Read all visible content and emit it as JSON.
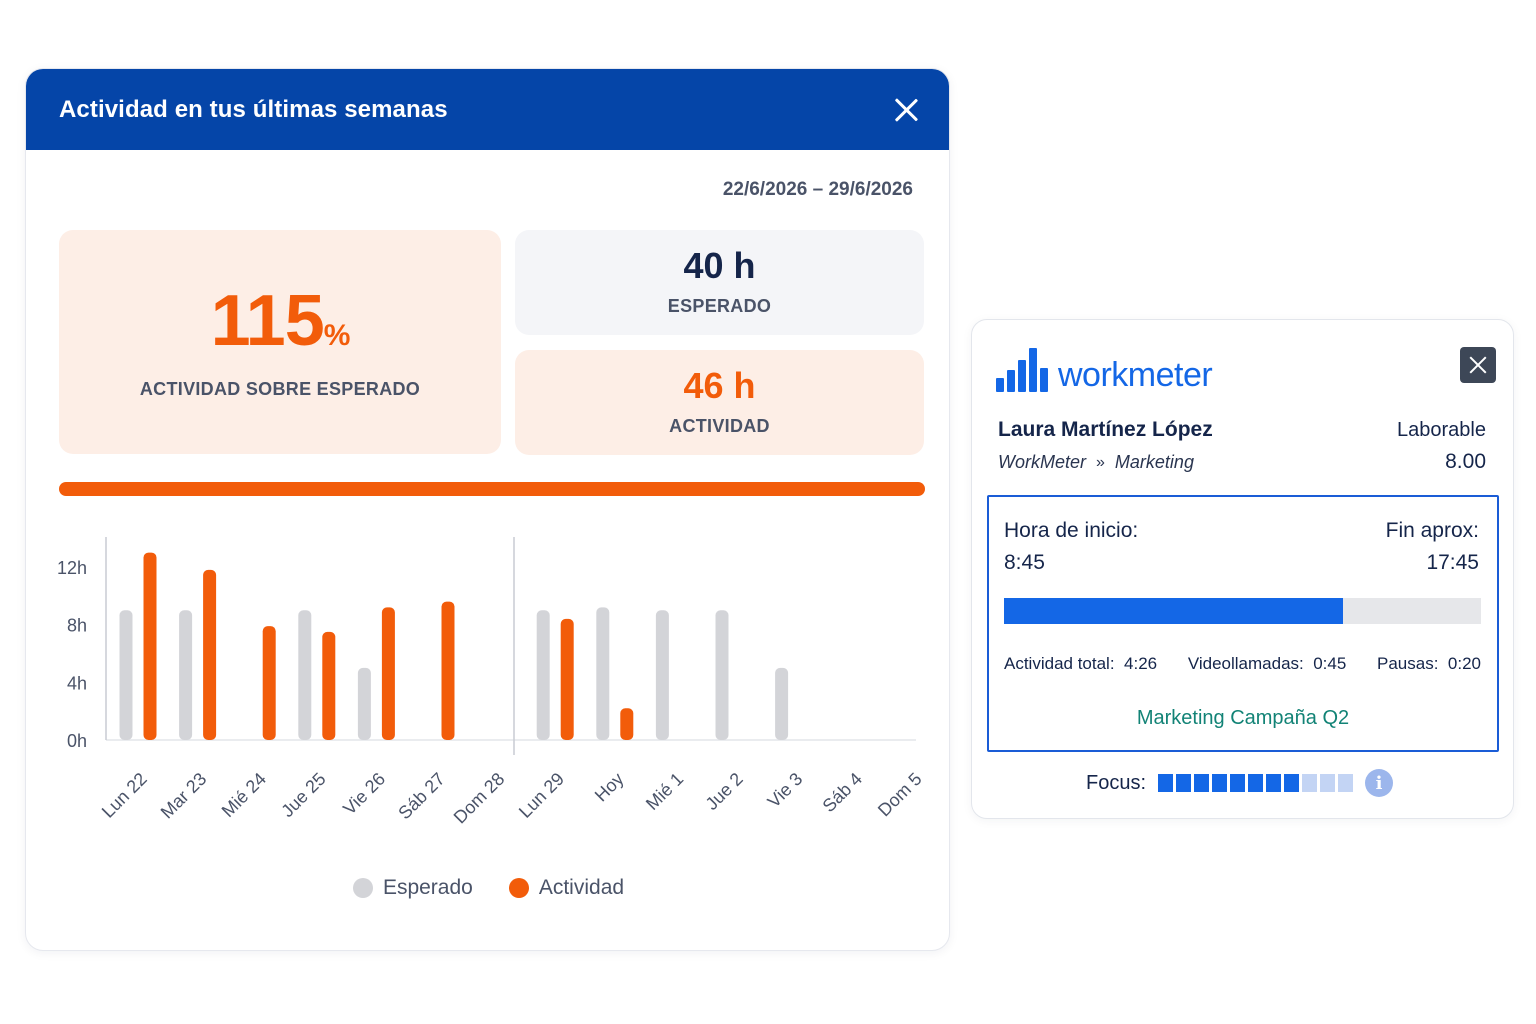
{
  "modal": {
    "title": "Actividad en tus últimas semanas",
    "date_range": "22/6/2026 – 29/6/2026",
    "percent_value": "115",
    "percent_sign": "%",
    "percent_label": "ACTIVIDAD SOBRE ESPERADO",
    "expected_value": "40 h",
    "expected_label": "ESPERADO",
    "activity_value": "46 h",
    "activity_label": "ACTIVIDAD",
    "legend": {
      "expected": "Esperado",
      "activity": "Actividad"
    }
  },
  "colors": {
    "header": "#0545a8",
    "orange": "#f25c0a",
    "grey_bar": "#d3d4d8",
    "blue": "#1467e6",
    "teal": "#128376"
  },
  "chart_data": {
    "type": "bar",
    "categories": [
      "Lun 22",
      "Mar 23",
      "Mié 24",
      "Jue 25",
      "Vie 26",
      "Sáb 27",
      "Dom 28",
      "Lun 29",
      "Hoy",
      "Mié 1",
      "Jue 2",
      "Vie 3",
      "Sáb 4",
      "Dom 5"
    ],
    "y_ticks": [
      "0h",
      "4h",
      "8h",
      "12h"
    ],
    "ylim": [
      0,
      14
    ],
    "series": [
      {
        "name": "Esperado",
        "values": [
          9,
          9,
          0,
          9,
          5,
          0,
          0,
          9,
          9.2,
          9,
          9,
          5,
          0,
          0
        ]
      },
      {
        "name": "Actividad",
        "values": [
          13,
          11.8,
          7.9,
          7.5,
          9.2,
          9.6,
          0,
          8.4,
          2.2,
          0,
          0,
          0,
          0,
          0
        ]
      }
    ]
  },
  "widget": {
    "logo_text": "workmeter",
    "user_name": "Laura Martínez López",
    "workday_type": "Laborable",
    "company": "WorkMeter",
    "crumb_sep": "»",
    "department": "Marketing",
    "workday_hours": "8.00",
    "start_label": "Hora de inicio:",
    "start_value": "8:45",
    "end_label": "Fin aprox:",
    "end_value": "17:45",
    "day_progress": 0.71,
    "stats": {
      "total_label": "Actividad total:",
      "total_value": "4:26",
      "calls_label": "Videollamadas:",
      "calls_value": "0:45",
      "breaks_label": "Pausas:",
      "breaks_value": "0:20"
    },
    "project": "Marketing Campaña Q2",
    "focus_label": "Focus:",
    "focus_level": 8,
    "focus_max": 11,
    "info_glyph": "i"
  }
}
